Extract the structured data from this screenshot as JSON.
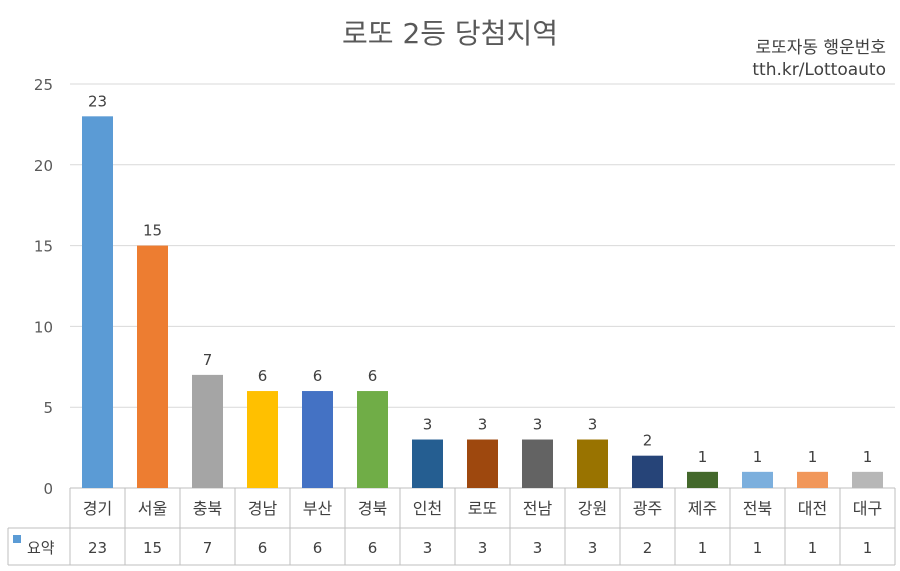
{
  "header": {
    "title": "로또 2등 당첨지역",
    "source_line1": "로또자동 행운번호",
    "source_line2": "tth.kr/Lottoauto"
  },
  "chart_data": {
    "type": "bar",
    "title": "로또 2등 당첨지역",
    "categories": [
      "경기",
      "서울",
      "충북",
      "경남",
      "부산",
      "경북",
      "인천",
      "로또",
      "전남",
      "강원",
      "광주",
      "제주",
      "전북",
      "대전",
      "대구"
    ],
    "series": [
      {
        "name": "요약",
        "values": [
          23,
          15,
          7,
          6,
          6,
          6,
          3,
          3,
          3,
          3,
          2,
          1,
          1,
          1,
          1
        ]
      }
    ],
    "bar_colors": [
      "#5B9BD5",
      "#ED7D31",
      "#A5A5A5",
      "#FFC000",
      "#4472C4",
      "#70AD47",
      "#255E91",
      "#9E480E",
      "#636363",
      "#997300",
      "#264478",
      "#43682B",
      "#7CAFDD",
      "#F1975A",
      "#B7B7B7"
    ],
    "legend_color": "#5B9BD5",
    "ylim": [
      0,
      25
    ],
    "yticks": [
      "0",
      "5",
      "10",
      "15",
      "20",
      "25"
    ],
    "grid": true,
    "data_table": true,
    "xlabel": "",
    "ylabel": ""
  }
}
